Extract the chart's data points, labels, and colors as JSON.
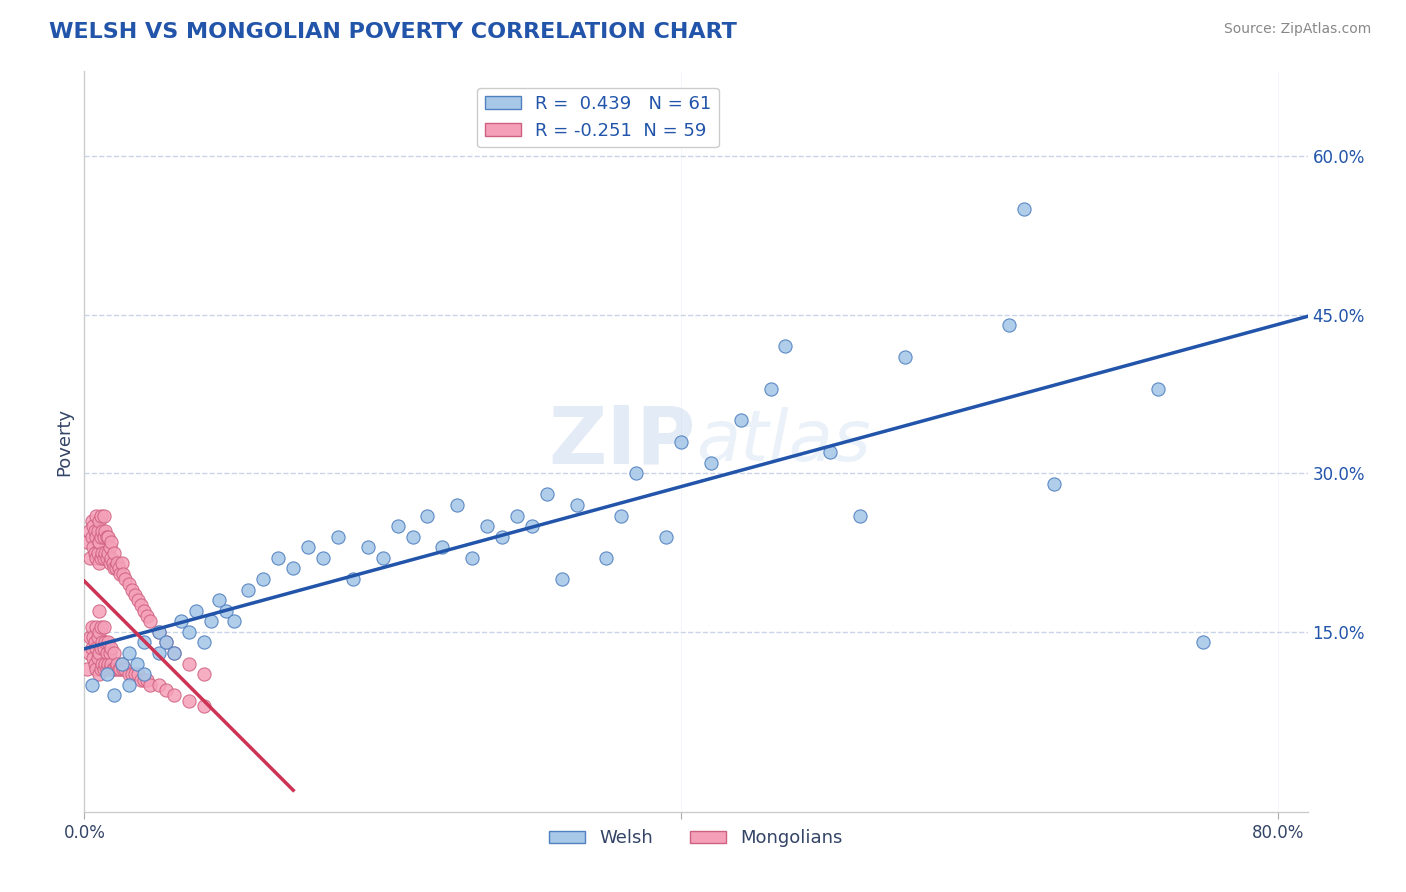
{
  "title": "WELSH VS MONGOLIAN POVERTY CORRELATION CHART",
  "source_text": "Source: ZipAtlas.com",
  "ylabel": "Poverty",
  "xlim": [
    0.0,
    0.82
  ],
  "ylim": [
    -0.02,
    0.68
  ],
  "yticks_right": [
    0.15,
    0.3,
    0.45,
    0.6
  ],
  "ytick_labels_right": [
    "15.0%",
    "30.0%",
    "45.0%",
    "60.0%"
  ],
  "welsh_R": 0.439,
  "welsh_N": 61,
  "mongolian_R": -0.251,
  "mongolian_N": 59,
  "welsh_color": "#a8c8e8",
  "mongolian_color": "#f4a0b8",
  "welsh_edge_color": "#5080c0",
  "mongolian_edge_color": "#d06080",
  "welsh_line_color": "#2255aa",
  "mongolian_line_color": "#cc3355",
  "legend_welsh_label": "Welsh",
  "legend_mongolian_label": "Mongolians",
  "watermark_zip": "ZIP",
  "watermark_atlas": "atlas",
  "background_color": "#ffffff",
  "grid_color": "#c8d4e8",
  "title_color": "#2255aa",
  "axis_color": "#334466",
  "tick_label_color": "#2255aa",
  "welsh_x": [
    0.005,
    0.015,
    0.02,
    0.025,
    0.03,
    0.03,
    0.035,
    0.04,
    0.04,
    0.05,
    0.05,
    0.055,
    0.06,
    0.065,
    0.07,
    0.075,
    0.08,
    0.085,
    0.09,
    0.095,
    0.1,
    0.11,
    0.12,
    0.13,
    0.14,
    0.15,
    0.16,
    0.17,
    0.18,
    0.19,
    0.2,
    0.21,
    0.22,
    0.23,
    0.24,
    0.25,
    0.26,
    0.27,
    0.28,
    0.29,
    0.3,
    0.31,
    0.32,
    0.33,
    0.35,
    0.36,
    0.37,
    0.39,
    0.4,
    0.42,
    0.44,
    0.46,
    0.47,
    0.5,
    0.52,
    0.55,
    0.62,
    0.63,
    0.65,
    0.72,
    0.75
  ],
  "welsh_y": [
    0.1,
    0.11,
    0.09,
    0.12,
    0.1,
    0.13,
    0.12,
    0.11,
    0.14,
    0.13,
    0.15,
    0.14,
    0.13,
    0.16,
    0.15,
    0.17,
    0.14,
    0.16,
    0.18,
    0.17,
    0.16,
    0.19,
    0.2,
    0.22,
    0.21,
    0.23,
    0.22,
    0.24,
    0.2,
    0.23,
    0.22,
    0.25,
    0.24,
    0.26,
    0.23,
    0.27,
    0.22,
    0.25,
    0.24,
    0.26,
    0.25,
    0.28,
    0.2,
    0.27,
    0.22,
    0.26,
    0.3,
    0.24,
    0.33,
    0.31,
    0.35,
    0.38,
    0.42,
    0.32,
    0.26,
    0.41,
    0.44,
    0.55,
    0.29,
    0.38,
    0.14
  ],
  "mongolian_x": [
    0.002,
    0.003,
    0.004,
    0.005,
    0.005,
    0.006,
    0.006,
    0.007,
    0.007,
    0.008,
    0.008,
    0.008,
    0.009,
    0.009,
    0.01,
    0.01,
    0.01,
    0.01,
    0.011,
    0.011,
    0.011,
    0.012,
    0.012,
    0.013,
    0.013,
    0.013,
    0.014,
    0.014,
    0.015,
    0.015,
    0.016,
    0.016,
    0.017,
    0.017,
    0.018,
    0.018,
    0.019,
    0.02,
    0.02,
    0.021,
    0.022,
    0.023,
    0.024,
    0.025,
    0.026,
    0.027,
    0.03,
    0.032,
    0.034,
    0.036,
    0.038,
    0.04,
    0.042,
    0.044,
    0.05,
    0.055,
    0.06,
    0.07,
    0.08
  ],
  "mongolian_y": [
    0.115,
    0.13,
    0.145,
    0.135,
    0.155,
    0.125,
    0.145,
    0.12,
    0.14,
    0.115,
    0.135,
    0.155,
    0.125,
    0.145,
    0.11,
    0.13,
    0.15,
    0.17,
    0.115,
    0.135,
    0.155,
    0.12,
    0.14,
    0.115,
    0.135,
    0.155,
    0.12,
    0.14,
    0.115,
    0.13,
    0.12,
    0.14,
    0.115,
    0.13,
    0.12,
    0.135,
    0.115,
    0.115,
    0.13,
    0.115,
    0.12,
    0.115,
    0.115,
    0.12,
    0.115,
    0.115,
    0.11,
    0.11,
    0.11,
    0.11,
    0.105,
    0.105,
    0.105,
    0.1,
    0.1,
    0.095,
    0.09,
    0.085,
    0.08
  ],
  "mongolian_high_y": [
    0.235,
    0.245,
    0.22,
    0.24,
    0.255,
    0.23,
    0.25,
    0.225,
    0.245,
    0.22,
    0.24,
    0.26,
    0.225,
    0.245,
    0.215,
    0.235,
    0.255,
    0.235,
    0.22,
    0.24,
    0.26,
    0.225,
    0.245,
    0.22,
    0.24,
    0.26,
    0.225,
    0.245,
    0.22,
    0.24,
    0.225,
    0.24,
    0.215,
    0.23,
    0.22,
    0.235,
    0.215,
    0.21,
    0.225,
    0.21,
    0.215,
    0.21,
    0.205,
    0.215,
    0.205,
    0.2,
    0.195,
    0.19,
    0.185,
    0.18,
    0.175,
    0.17,
    0.165,
    0.16,
    0.15,
    0.14,
    0.13,
    0.12,
    0.11
  ]
}
